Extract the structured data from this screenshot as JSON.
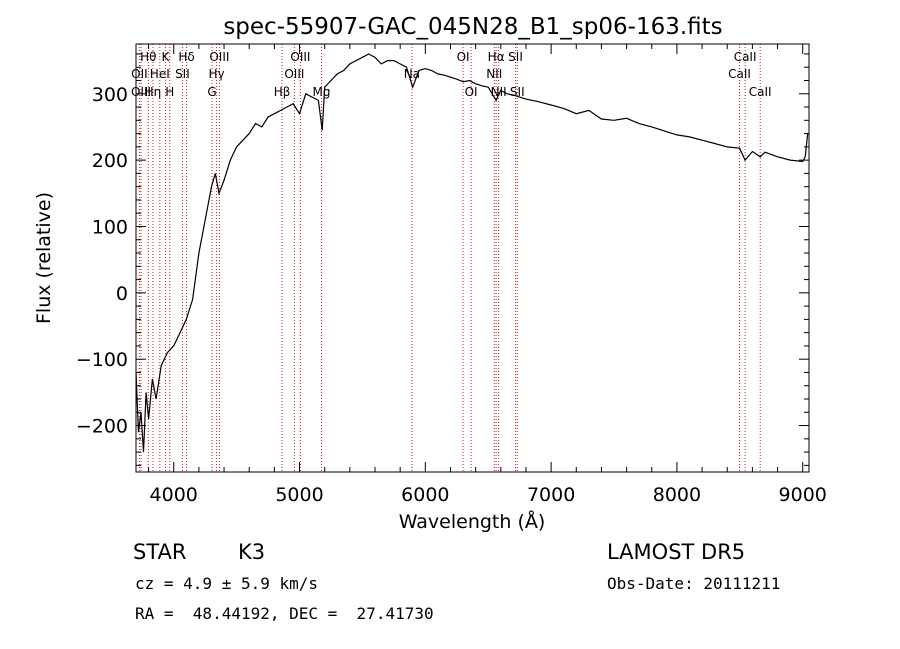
{
  "chart_data": {
    "type": "line",
    "title": "spec-55907-GAC_045N28_B1_sp06-163.fits",
    "xlabel": "Wavelength (Å)",
    "ylabel": "Flux (relative)",
    "xlim": [
      3700,
      9050
    ],
    "ylim": [
      -270,
      375
    ],
    "xticks": [
      4000,
      5000,
      6000,
      7000,
      8000,
      9000
    ],
    "yticks": [
      -200,
      -100,
      0,
      100,
      200,
      300
    ],
    "grid": false,
    "series": [
      {
        "x": [
          3700,
          3720,
          3740,
          3760,
          3780,
          3800,
          3830,
          3860,
          3900,
          3950,
          4000,
          4050,
          4100,
          4150,
          4200,
          4250,
          4300,
          4330,
          4360,
          4400,
          4450,
          4500,
          4550,
          4600,
          4650,
          4700,
          4750,
          4800,
          4850,
          4900,
          4950,
          5000,
          5050,
          5100,
          5150,
          5180,
          5200,
          5250,
          5300,
          5350,
          5400,
          5450,
          5500,
          5550,
          5600,
          5650,
          5700,
          5750,
          5800,
          5850,
          5900,
          5950,
          6000,
          6050,
          6100,
          6150,
          6200,
          6250,
          6300,
          6350,
          6400,
          6450,
          6500,
          6563,
          6600,
          6650,
          6700,
          6750,
          6800,
          6900,
          7000,
          7100,
          7200,
          7300,
          7400,
          7500,
          7600,
          7700,
          7800,
          7900,
          8000,
          8100,
          8200,
          8300,
          8400,
          8498,
          8542,
          8600,
          8662,
          8700,
          8800,
          8900,
          9000,
          9020,
          9040
        ],
        "y": [
          -120,
          -210,
          -180,
          -240,
          -150,
          -190,
          -130,
          -160,
          -110,
          -90,
          -80,
          -60,
          -40,
          -10,
          60,
          110,
          160,
          180,
          150,
          170,
          200,
          220,
          230,
          240,
          255,
          250,
          265,
          270,
          275,
          280,
          285,
          270,
          300,
          295,
          290,
          245,
          310,
          320,
          330,
          335,
          345,
          350,
          355,
          360,
          355,
          345,
          350,
          350,
          345,
          340,
          310,
          335,
          338,
          335,
          330,
          328,
          325,
          322,
          318,
          320,
          315,
          312,
          310,
          290,
          305,
          300,
          298,
          295,
          292,
          288,
          283,
          278,
          270,
          275,
          262,
          260,
          263,
          255,
          250,
          244,
          238,
          235,
          230,
          225,
          220,
          218,
          200,
          213,
          205,
          212,
          205,
          200,
          198,
          205,
          240
        ]
      }
    ],
    "line_labels": [
      {
        "text": "Hθ",
        "x": 3798,
        "tier": 1
      },
      {
        "text": "OII",
        "x": 3727,
        "tier": 2
      },
      {
        "text": "OIII",
        "x": 3740,
        "tier": 3
      },
      {
        "text": "K",
        "x": 3934,
        "tier": 1
      },
      {
        "text": "HeI",
        "x": 3889,
        "tier": 2
      },
      {
        "text": "Hη",
        "x": 3835,
        "tier": 3
      },
      {
        "text": "SII",
        "x": 4069,
        "tier": 2
      },
      {
        "text": "H",
        "x": 3968,
        "tier": 3
      },
      {
        "text": "Hδ",
        "x": 4102,
        "tier": 1
      },
      {
        "text": "OIII",
        "x": 4363,
        "tier": 1
      },
      {
        "text": "Hγ",
        "x": 4340,
        "tier": 2
      },
      {
        "text": "G",
        "x": 4304,
        "tier": 3
      },
      {
        "text": "OIII",
        "x": 5007,
        "tier": 1
      },
      {
        "text": "OIII",
        "x": 4959,
        "tier": 2
      },
      {
        "text": "Hβ",
        "x": 4861,
        "tier": 3
      },
      {
        "text": "Mg",
        "x": 5175,
        "tier": 3
      },
      {
        "text": "Na",
        "x": 5893,
        "tier": 2
      },
      {
        "text": "OI",
        "x": 6300,
        "tier": 1
      },
      {
        "text": "OI",
        "x": 6364,
        "tier": 3
      },
      {
        "text": "NII",
        "x": 6548,
        "tier": 2
      },
      {
        "text": "Hα",
        "x": 6563,
        "tier": 1
      },
      {
        "text": "NII",
        "x": 6583,
        "tier": 3
      },
      {
        "text": "SII",
        "x": 6717,
        "tier": 1
      },
      {
        "text": "SII",
        "x": 6731,
        "tier": 3
      },
      {
        "text": "CaII",
        "x": 8498,
        "tier": 2
      },
      {
        "text": "CaII",
        "x": 8542,
        "tier": 1
      },
      {
        "text": "CaII",
        "x": 8662,
        "tier": 3
      }
    ],
    "line_positions": [
      3727,
      3740,
      3798,
      3835,
      3889,
      3934,
      3968,
      4069,
      4102,
      4304,
      4340,
      4363,
      4861,
      4959,
      5007,
      5175,
      5893,
      6300,
      6364,
      6548,
      6563,
      6583,
      6717,
      6731,
      8498,
      8542,
      8662
    ],
    "colors": {
      "spectrum": "#000000",
      "lines": "#c8201c",
      "axes": "#000000"
    }
  },
  "info": {
    "object_class": "STAR",
    "subclass": "K3",
    "survey": "LAMOST DR5",
    "redshift": "cz = 4.9 ± 5.9 km/s",
    "obs_date": "Obs-Date: 20111211",
    "coords": "RA =  48.44192, DEC =  27.41730"
  }
}
